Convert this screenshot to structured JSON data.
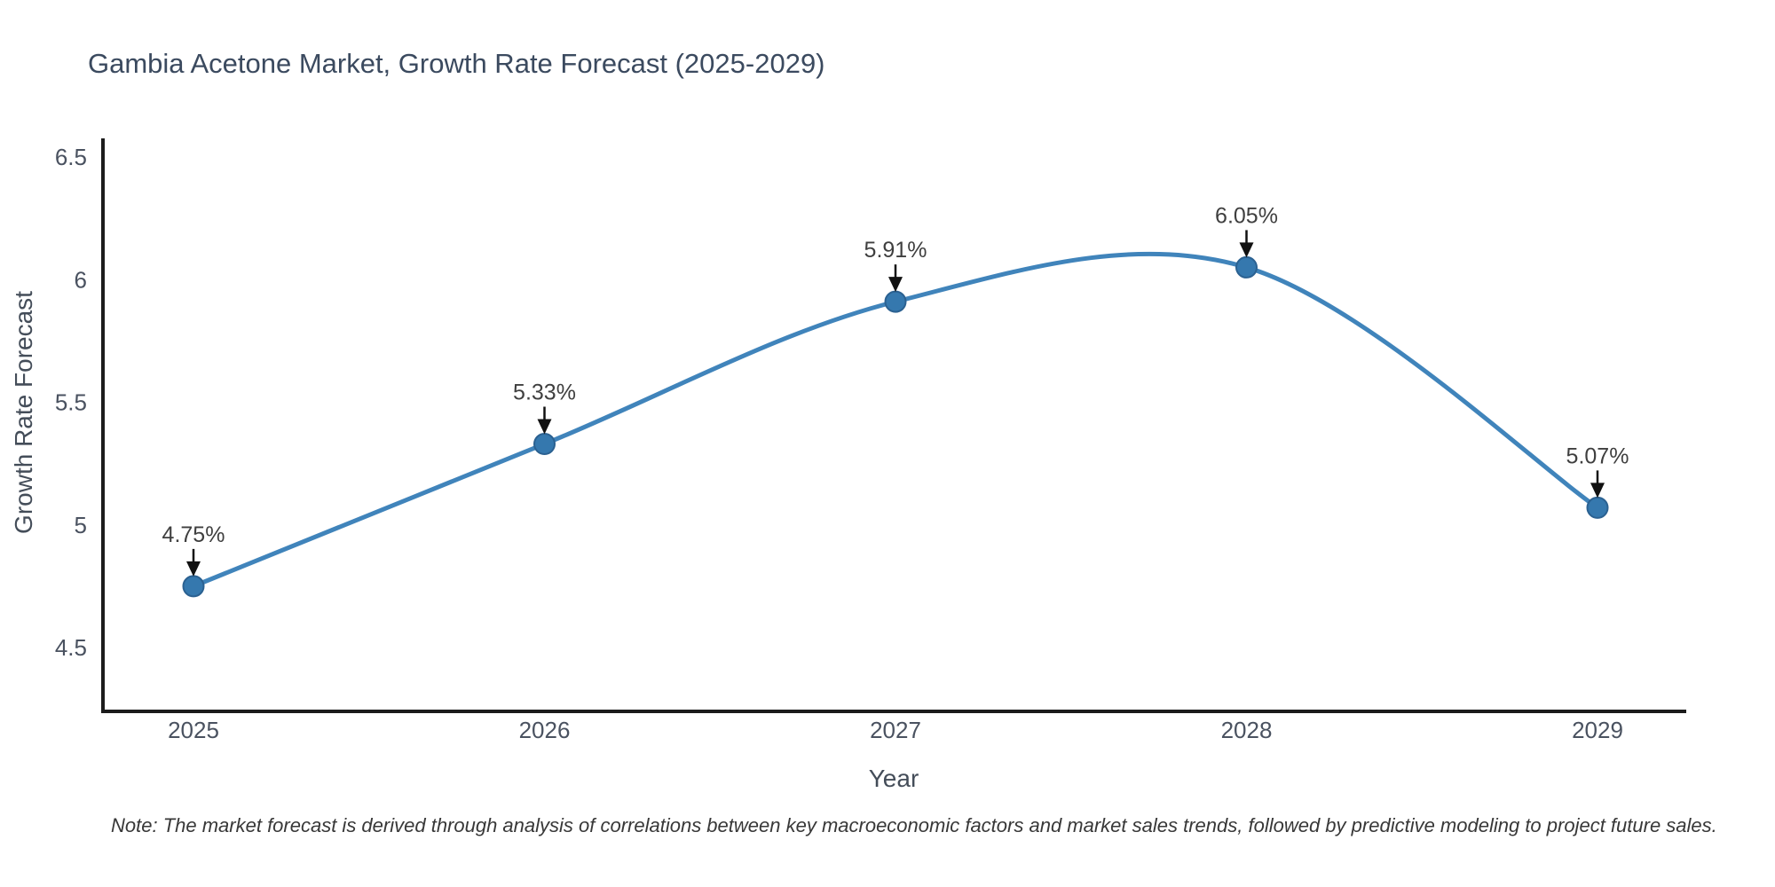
{
  "title": "Gambia Acetone Market, Growth Rate Forecast (2025-2029)",
  "note": "Note: The market forecast is derived through analysis of correlations between key macroeconomic factors and market sales trends, followed by predictive modeling to project future sales.",
  "colors": {
    "line": "#4084bb",
    "marker_fill": "#3578ae",
    "marker_edge": "#2b6191",
    "axis_line": "#1c1c1c",
    "title_text": "#3b4a5f",
    "axis_title_text": "#444d59",
    "tick_text": "#4a5260",
    "point_label_text": "#3f3f3f",
    "arrow": "#111111",
    "note_text": "#383838"
  },
  "chart_data": {
    "type": "line",
    "title": "Gambia Acetone Market, Growth Rate Forecast (2025-2029)",
    "xlabel": "Year",
    "ylabel": "Growth Rate Forecast",
    "x": [
      2025,
      2026,
      2027,
      2028,
      2029
    ],
    "values": [
      4.75,
      5.33,
      5.91,
      6.05,
      5.07
    ],
    "point_labels": [
      "4.75%",
      "5.33%",
      "5.91%",
      "6.05%",
      "5.07%"
    ],
    "x_tick_labels": [
      "2025",
      "2026",
      "2027",
      "2028",
      "2029"
    ],
    "y_ticks": [
      4.5,
      5.0,
      5.5,
      6.0,
      6.5
    ],
    "y_tick_labels": [
      "4.5",
      "5",
      "5.5",
      "6",
      "6.5"
    ],
    "ylim": [
      4.25,
      6.57
    ],
    "line_shape": "spline",
    "markers": true,
    "grid": false,
    "legend": false
  }
}
